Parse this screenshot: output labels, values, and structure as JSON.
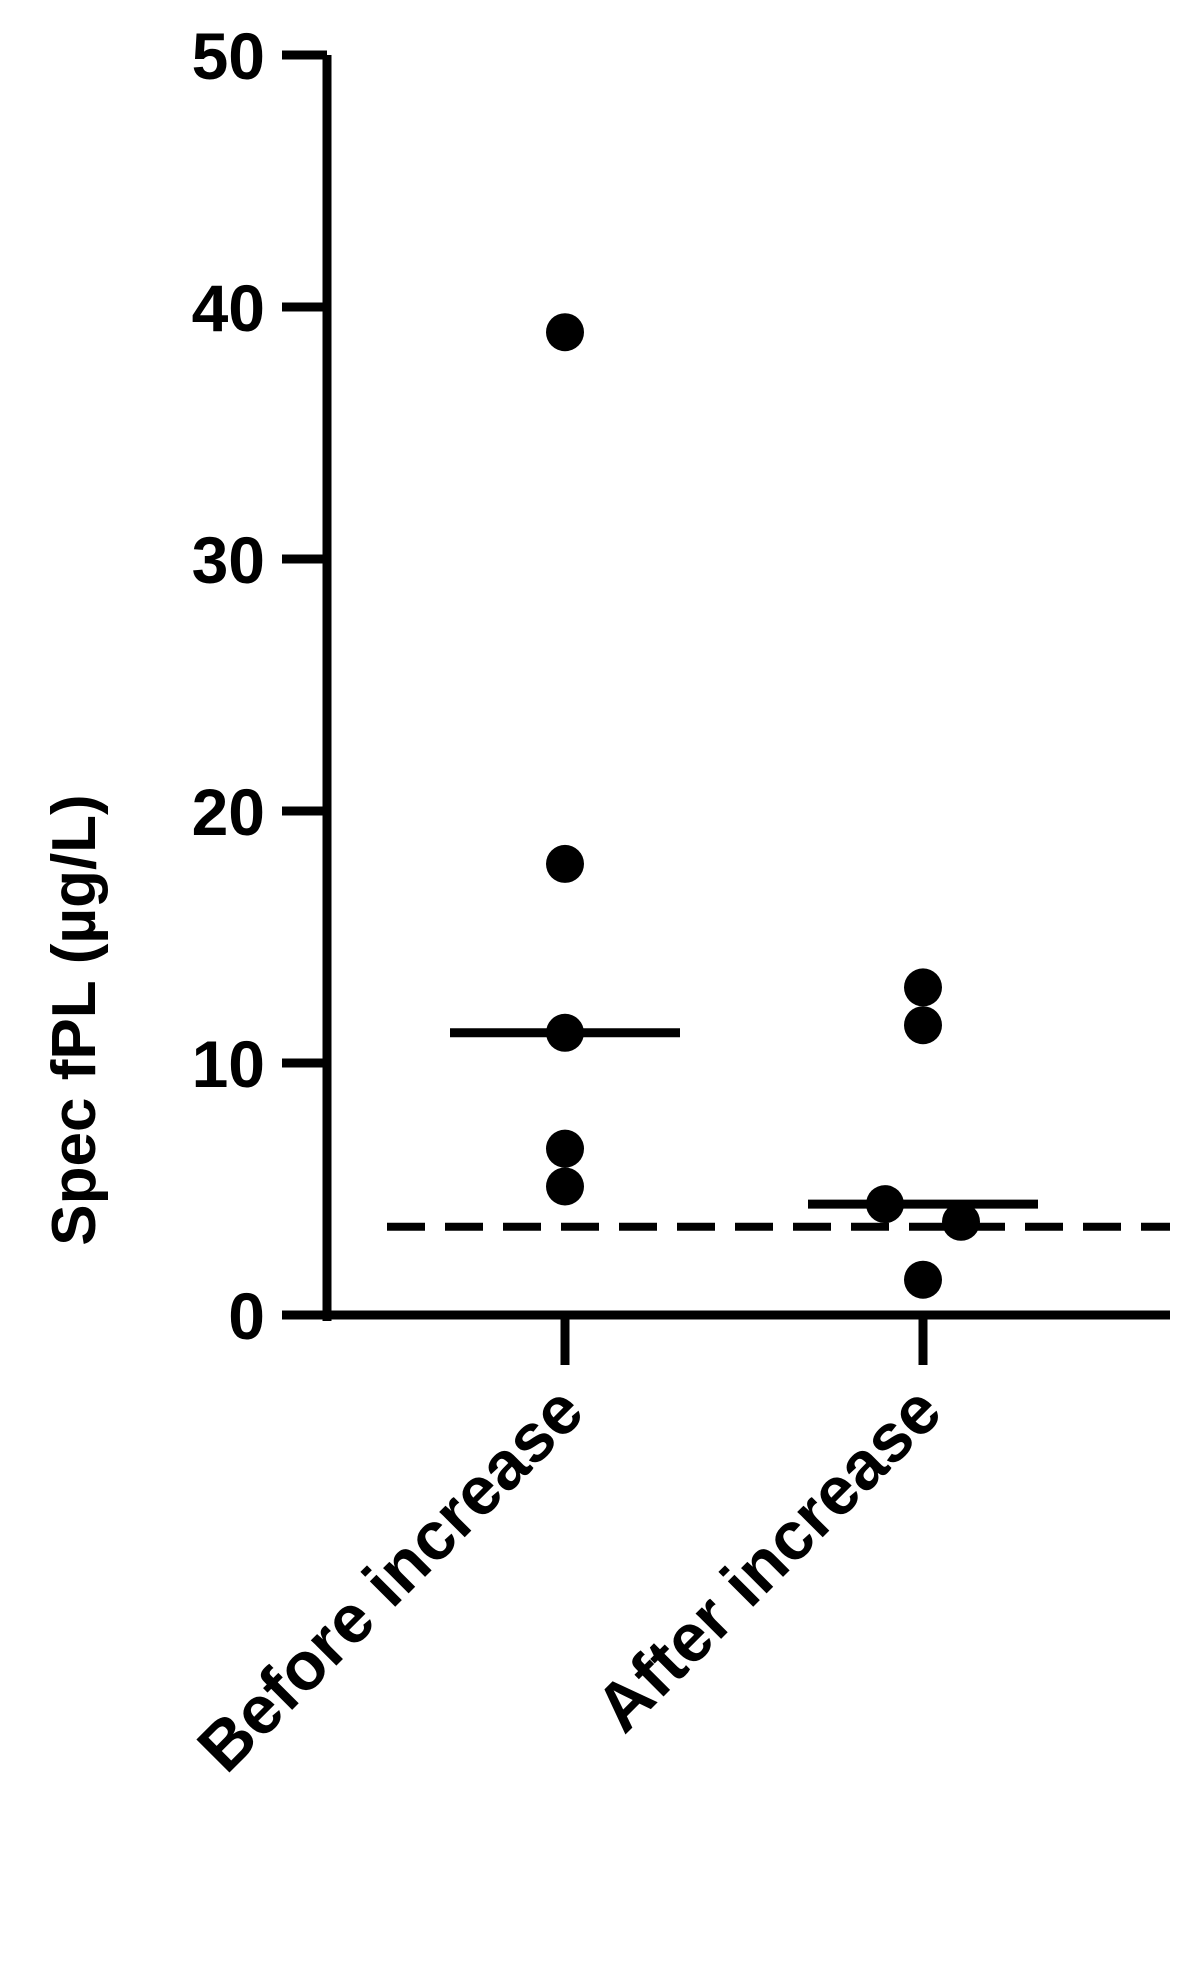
{
  "chart_data": {
    "type": "scatter",
    "title": "",
    "xlabel": "",
    "ylabel": "Spec fPL (µg/L)",
    "ylim": [
      0,
      50
    ],
    "yticks": [
      0,
      10,
      20,
      30,
      40,
      50
    ],
    "grid": false,
    "categories": [
      "Before increase",
      "After increase"
    ],
    "series": [
      {
        "category": "Before increase",
        "points": [
          39.0,
          17.9,
          11.2,
          6.6,
          5.1
        ],
        "median": 11.2
      },
      {
        "category": "After increase",
        "points": [
          13.0,
          11.5,
          4.4,
          3.7,
          1.4
        ],
        "median": 4.4
      }
    ],
    "reference_line": {
      "value": 3.5,
      "style": "dashed"
    }
  }
}
